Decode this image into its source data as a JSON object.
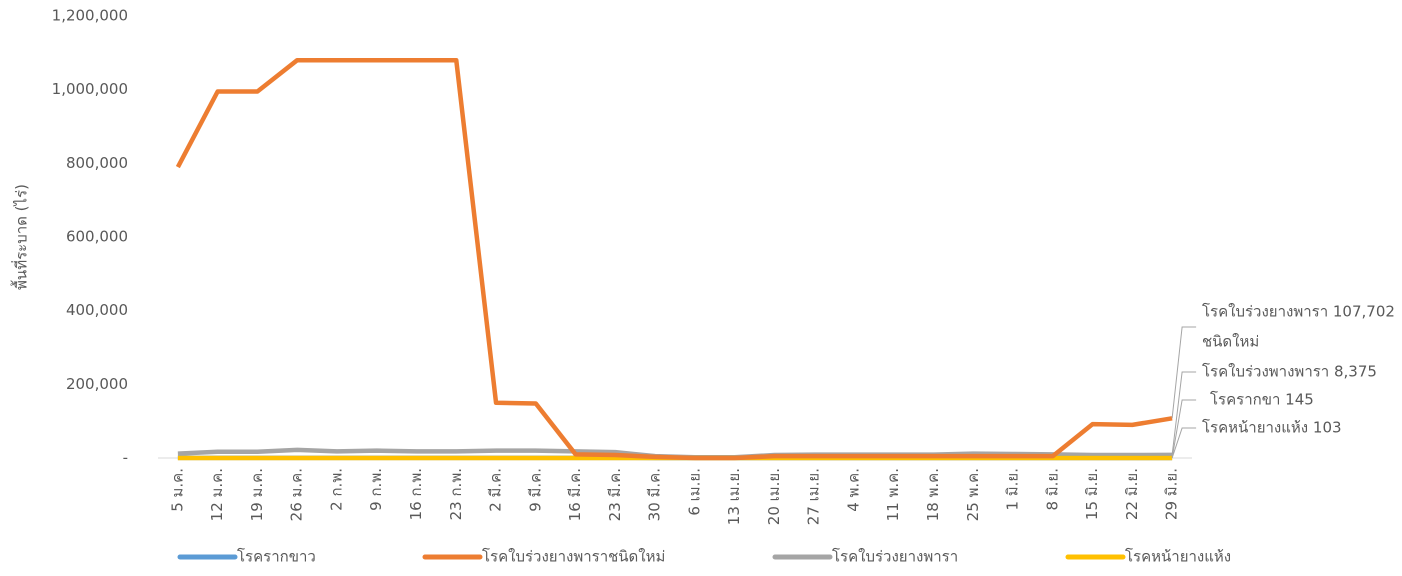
{
  "chart_data": {
    "type": "line",
    "y_label": "พื้นที่ระบาด (ไร่)",
    "categories": [
      "5 ม.ค.",
      "12 ม.ค.",
      "19 ม.ค.",
      "26 ม.ค.",
      "2 ก.พ.",
      "9 ก.พ.",
      "16 ก.พ.",
      "23 ก.พ.",
      "2 มี.ค.",
      "9 มี.ค.",
      "16 มี.ค.",
      "23 มี.ค.",
      "30 มี.ค.",
      "6 เม.ย.",
      "13 เม.ย.",
      "20 เม.ย.",
      "27 เม.ย.",
      "4 พ.ค.",
      "11 พ.ค.",
      "18 พ.ค.",
      "25 พ.ค.",
      "1 มิ.ย.",
      "8 มิ.ย.",
      "15 มิ.ย.",
      "22 มิ.ย.",
      "29 มิ.ย."
    ],
    "series": [
      {
        "name": "โรครากขาว",
        "color": "#5b9bd5",
        "values": [
          200,
          200,
          200,
          200,
          200,
          200,
          200,
          200,
          200,
          200,
          200,
          200,
          150,
          100,
          100,
          150,
          150,
          150,
          150,
          150,
          150,
          150,
          150,
          150,
          150,
          145
        ]
      },
      {
        "name": "โรคใบร่วงยางพาราชนิดใหม่",
        "color": "#ed7d31",
        "values": [
          790000,
          995000,
          995000,
          1080000,
          1080000,
          1080000,
          1080000,
          1080000,
          150000,
          148000,
          10000,
          8000,
          3000,
          0,
          0,
          5000,
          5000,
          5000,
          5000,
          5000,
          5000,
          5000,
          5000,
          92000,
          90000,
          107702
        ]
      },
      {
        "name": "โรคใบร่วงยางพารา",
        "color": "#a5a5a5",
        "values": [
          12000,
          17000,
          17000,
          22000,
          18000,
          20000,
          18000,
          18000,
          20000,
          20000,
          18000,
          16000,
          5000,
          2000,
          2000,
          8000,
          9000,
          9000,
          9000,
          9000,
          12000,
          11000,
          10000,
          8000,
          8000,
          8375
        ]
      },
      {
        "name": "โรคหน้ายางแห้ง",
        "color": "#ffc000",
        "values": [
          100,
          100,
          100,
          100,
          100,
          100,
          100,
          100,
          100,
          100,
          100,
          100,
          100,
          100,
          100,
          100,
          100,
          100,
          100,
          100,
          100,
          100,
          100,
          100,
          100,
          103
        ]
      }
    ],
    "annotations": [
      {
        "series": 1,
        "lines": [
          "โรคใบร่วงยางพารา 107,702",
          "ชนิดใหม่"
        ]
      },
      {
        "series": 2,
        "lines": [
          "โรคใบร่วงพางพารา 8,375"
        ]
      },
      {
        "series": 0,
        "lines": [
          "โรครากขา 145"
        ]
      },
      {
        "series": 3,
        "lines": [
          "โรคหน้ายางแห้ง 103"
        ]
      }
    ],
    "ylim": [
      0,
      1200000
    ],
    "yticks": [
      {
        "value": 0,
        "label": "-"
      },
      {
        "value": 200000,
        "label": "200,000"
      },
      {
        "value": 400000,
        "label": "400,000"
      },
      {
        "value": 600000,
        "label": "600,000"
      },
      {
        "value": 800000,
        "label": "800,000"
      },
      {
        "value": 1000000,
        "label": "1,000,000"
      },
      {
        "value": 1200000,
        "label": "1,200,000"
      }
    ],
    "grid": false,
    "legend": "bottom"
  }
}
